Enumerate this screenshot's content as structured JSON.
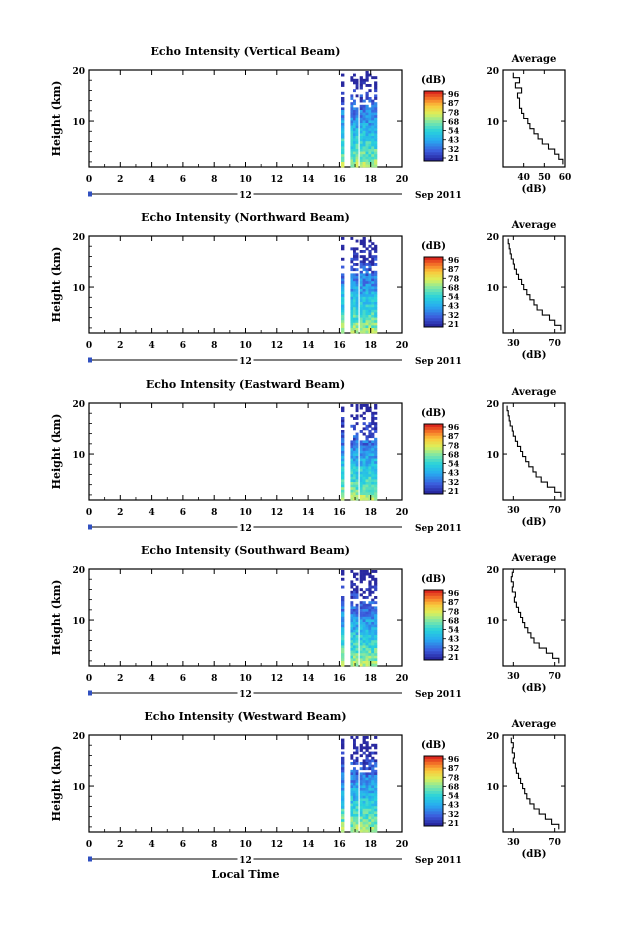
{
  "figure": {
    "xlabel": "Local Time",
    "date_day": "12",
    "date_monthyear": "Sep 2011",
    "colorbar_unit": "(dB)",
    "colorbar_ticks": [
      "96",
      "87",
      "78",
      "68",
      "54",
      "43",
      "32",
      "21"
    ],
    "avg_title": "Average",
    "avg_xlabel": "(dB)",
    "ylabel": "Height (km)"
  },
  "chart_data": [
    {
      "type": "heatmap",
      "title": "Echo Intensity (Vertical Beam)",
      "xlabel": "Local Time",
      "ylabel": "Height (km)",
      "x_ticks": [
        0,
        2,
        4,
        6,
        8,
        10,
        12,
        14,
        16,
        18,
        20
      ],
      "y_ticks": [
        10,
        20
      ],
      "xlim": [
        0,
        20
      ],
      "ylim": [
        1,
        20
      ],
      "data_time_ranges": [
        [
          16.1,
          16.3
        ],
        [
          16.7,
          17.2
        ],
        [
          17.3,
          18.4
        ]
      ],
      "colorbar": {
        "label": "(dB)",
        "ticks": [
          96,
          87,
          78,
          68,
          54,
          43,
          32,
          21
        ]
      },
      "average_profile": {
        "title": "Average",
        "xlabel": "(dB)",
        "xlim": [
          30,
          60
        ],
        "x_ticks": [
          40,
          50,
          60
        ],
        "ylim": [
          1,
          20
        ],
        "y_ticks": [
          10,
          20
        ],
        "height": [
          2,
          3,
          4,
          5,
          6,
          7,
          8,
          9,
          10,
          11,
          12,
          13,
          14,
          15,
          16,
          17,
          18,
          19
        ],
        "value": [
          59,
          57,
          55,
          52,
          49,
          47,
          45,
          43,
          42,
          40,
          39,
          38,
          38,
          37,
          39,
          36,
          38,
          35
        ]
      }
    },
    {
      "type": "heatmap",
      "title": "Echo Intensity (Northward Beam)",
      "xlabel": "Local Time",
      "ylabel": "Height (km)",
      "x_ticks": [
        0,
        2,
        4,
        6,
        8,
        10,
        12,
        14,
        16,
        18,
        20
      ],
      "y_ticks": [
        10,
        20
      ],
      "xlim": [
        0,
        20
      ],
      "ylim": [
        1,
        20
      ],
      "data_time_ranges": [
        [
          16.1,
          16.3
        ],
        [
          16.7,
          17.2
        ],
        [
          17.3,
          18.4
        ]
      ],
      "colorbar": {
        "label": "(dB)",
        "ticks": [
          96,
          87,
          78,
          68,
          54,
          43,
          32,
          21
        ]
      },
      "average_profile": {
        "title": "Average",
        "xlabel": "(dB)",
        "xlim": [
          20,
          80
        ],
        "x_ticks": [
          30,
          70
        ],
        "ylim": [
          1,
          20
        ],
        "y_ticks": [
          10,
          20
        ],
        "height": [
          2,
          3,
          4,
          5,
          6,
          7,
          8,
          9,
          10,
          11,
          12,
          13,
          14,
          15,
          16,
          17,
          18,
          19
        ],
        "value": [
          76,
          70,
          65,
          58,
          53,
          50,
          46,
          43,
          40,
          38,
          35,
          33,
          31,
          30,
          28,
          27,
          26,
          25
        ]
      }
    },
    {
      "type": "heatmap",
      "title": "Echo Intensity (Eastward Beam)",
      "xlabel": "Local Time",
      "ylabel": "Height (km)",
      "x_ticks": [
        0,
        2,
        4,
        6,
        8,
        10,
        12,
        14,
        16,
        18,
        20
      ],
      "y_ticks": [
        10,
        20
      ],
      "xlim": [
        0,
        20
      ],
      "ylim": [
        1,
        20
      ],
      "data_time_ranges": [
        [
          16.1,
          16.3
        ],
        [
          16.7,
          17.2
        ],
        [
          17.3,
          18.4
        ]
      ],
      "colorbar": {
        "label": "(dB)",
        "ticks": [
          96,
          87,
          78,
          68,
          54,
          43,
          32,
          21
        ]
      },
      "average_profile": {
        "title": "Average",
        "xlabel": "(dB)",
        "xlim": [
          20,
          80
        ],
        "x_ticks": [
          30,
          70
        ],
        "ylim": [
          1,
          20
        ],
        "y_ticks": [
          10,
          20
        ],
        "height": [
          2,
          3,
          4,
          5,
          6,
          7,
          8,
          9,
          10,
          11,
          12,
          13,
          14,
          15,
          16,
          17,
          18,
          19
        ],
        "value": [
          76,
          70,
          63,
          57,
          52,
          49,
          45,
          42,
          39,
          37,
          34,
          32,
          30,
          29,
          27,
          26,
          25,
          24
        ]
      }
    },
    {
      "type": "heatmap",
      "title": "Echo Intensity (Southward Beam)",
      "xlabel": "Local Time",
      "ylabel": "Height (km)",
      "x_ticks": [
        0,
        2,
        4,
        6,
        8,
        10,
        12,
        14,
        16,
        18,
        20
      ],
      "y_ticks": [
        10,
        20
      ],
      "xlim": [
        0,
        20
      ],
      "ylim": [
        1,
        20
      ],
      "data_time_ranges": [
        [
          16.1,
          16.3
        ],
        [
          16.7,
          17.2
        ],
        [
          17.3,
          18.4
        ]
      ],
      "colorbar": {
        "label": "(dB)",
        "ticks": [
          96,
          87,
          78,
          68,
          54,
          43,
          32,
          21
        ]
      },
      "average_profile": {
        "title": "Average",
        "xlabel": "(dB)",
        "xlim": [
          20,
          80
        ],
        "x_ticks": [
          30,
          70
        ],
        "ylim": [
          1,
          20
        ],
        "y_ticks": [
          10,
          20
        ],
        "height": [
          2,
          3,
          4,
          5,
          6,
          7,
          8,
          9,
          10,
          11,
          12,
          13,
          14,
          15,
          16,
          17,
          18,
          19
        ],
        "value": [
          74,
          68,
          62,
          55,
          50,
          47,
          44,
          41,
          39,
          37,
          35,
          33,
          31,
          32,
          29,
          30,
          28,
          29
        ]
      }
    },
    {
      "type": "heatmap",
      "title": "Echo Intensity (Westward Beam)",
      "xlabel": "Local Time",
      "ylabel": "Height (km)",
      "x_ticks": [
        0,
        2,
        4,
        6,
        8,
        10,
        12,
        14,
        16,
        18,
        20
      ],
      "y_ticks": [
        10,
        20
      ],
      "xlim": [
        0,
        20
      ],
      "ylim": [
        1,
        20
      ],
      "data_time_ranges": [
        [
          16.1,
          16.3
        ],
        [
          16.7,
          17.2
        ],
        [
          17.3,
          18.4
        ]
      ],
      "colorbar": {
        "label": "(dB)",
        "ticks": [
          96,
          87,
          78,
          68,
          54,
          43,
          32,
          21
        ]
      },
      "average_profile": {
        "title": "Average",
        "xlabel": "(dB)",
        "xlim": [
          20,
          80
        ],
        "x_ticks": [
          30,
          70
        ],
        "ylim": [
          1,
          20
        ],
        "y_ticks": [
          10,
          20
        ],
        "height": [
          2,
          3,
          4,
          5,
          6,
          7,
          8,
          9,
          10,
          11,
          12,
          13,
          14,
          15,
          16,
          17,
          18,
          19
        ],
        "value": [
          74,
          67,
          61,
          55,
          50,
          46,
          43,
          41,
          39,
          37,
          35,
          33,
          32,
          30,
          31,
          29,
          30,
          28
        ]
      }
    }
  ]
}
